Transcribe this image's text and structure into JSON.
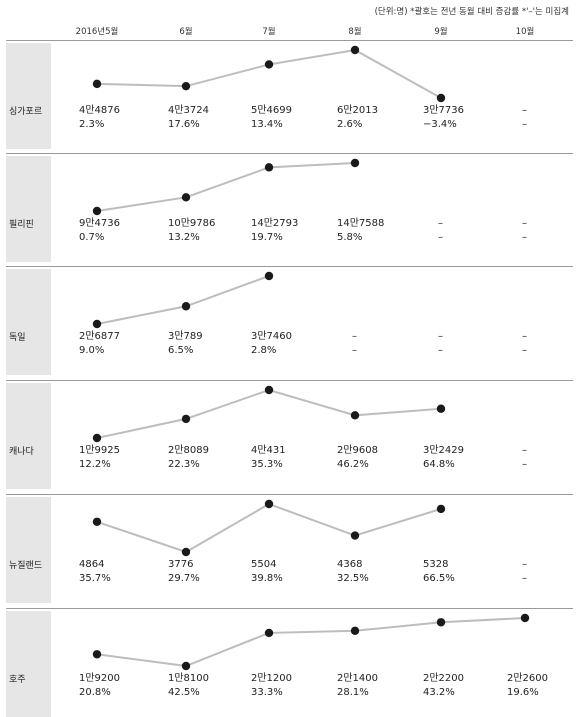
{
  "note": "(단위:명) *괄호는 전년 동월 대비 증감률 *'–'는 미집계",
  "months": [
    "2016년5월",
    "6월",
    "7월",
    "8월",
    "9월",
    "10월"
  ],
  "missing_mark": "–",
  "colors": {
    "line": "#bdbdbd",
    "point": "#1a1a1a",
    "country_box": "#e6e6e6",
    "separator": "#9a9a9a"
  },
  "chart_data": {
    "type": "line",
    "title": "",
    "categories": [
      "2016년5월",
      "6월",
      "7월",
      "8월",
      "9월",
      "10월"
    ],
    "unit": "명",
    "series": [
      {
        "name": "싱가포르",
        "values": [
          44876,
          43724,
          54699,
          62013,
          37736,
          null
        ],
        "labels": [
          "4만4876",
          "4만3724",
          "5만4699",
          "6만2013",
          "3만7736",
          "–"
        ],
        "growth": [
          "2.3%",
          "17.6%",
          "13.4%",
          "2.6%",
          "−3.4%",
          "–"
        ]
      },
      {
        "name": "필리핀",
        "values": [
          94736,
          109786,
          142793,
          147588,
          null,
          null
        ],
        "labels": [
          "9만4736",
          "10만9786",
          "14만2793",
          "14만7588",
          "–",
          "–"
        ],
        "growth": [
          "0.7%",
          "13.2%",
          "19.7%",
          "5.8%",
          "–",
          "–"
        ]
      },
      {
        "name": "독일",
        "values": [
          26877,
          30789,
          37460,
          null,
          null,
          null
        ],
        "labels": [
          "2만6877",
          "3만789",
          "3만7460",
          "–",
          "–",
          "–"
        ],
        "growth": [
          "9.0%",
          "6.5%",
          "2.8%",
          "–",
          "–",
          "–"
        ]
      },
      {
        "name": "캐나다",
        "values": [
          19925,
          28089,
          40431,
          29608,
          32429,
          null
        ],
        "labels": [
          "1만9925",
          "2만8089",
          "4만431",
          "2만9608",
          "3만2429",
          "–"
        ],
        "growth": [
          "12.2%",
          "22.3%",
          "35.3%",
          "46.2%",
          "64.8%",
          "–"
        ]
      },
      {
        "name": "뉴질랜드",
        "values": [
          4864,
          3776,
          5504,
          4368,
          5328,
          null
        ],
        "labels": [
          "4864",
          "3776",
          "5504",
          "4368",
          "5328",
          "–"
        ],
        "growth": [
          "35.7%",
          "29.7%",
          "39.8%",
          "32.5%",
          "66.5%",
          "–"
        ]
      },
      {
        "name": "호주",
        "values": [
          19200,
          18100,
          21200,
          21400,
          22200,
          22600
        ],
        "labels": [
          "1만9200",
          "1만8100",
          "2만1200",
          "2만1400",
          "2만2200",
          "2만2600"
        ],
        "growth": [
          "20.8%",
          "42.5%",
          "33.3%",
          "28.1%",
          "43.2%",
          "19.6%"
        ]
      }
    ]
  }
}
